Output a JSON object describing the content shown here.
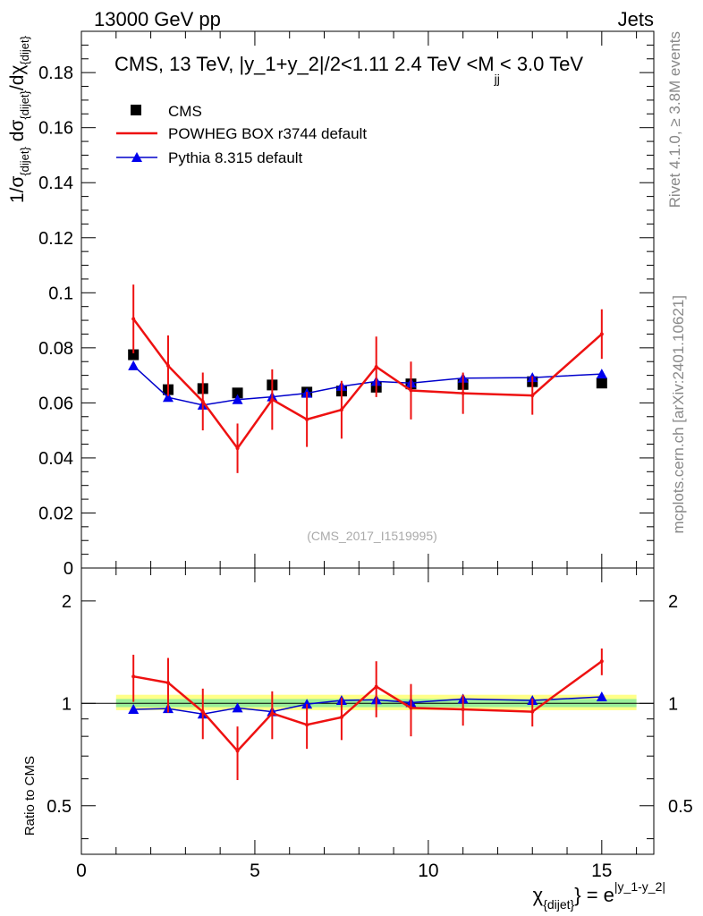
{
  "header": {
    "left": "13000 GeV pp",
    "right": "Jets"
  },
  "plot_title_parts": {
    "main": "CMS, 13 TeV, |y_1+y_2|/2<1.11 2.4 TeV <M",
    "sub": "jj",
    "tail": "< 3.0 TeV"
  },
  "side_labels": {
    "rivet": "Rivet 4.1.0, ≥ 3.8M events",
    "mcplots": "mcplots.cern.ch [arXiv:2401.10621]"
  },
  "watermark": "(CMS_2017_I1519995)",
  "ylabel_top_parts": {
    "a": "1/σ",
    "a_sub": "{dijet}",
    "b": " dσ",
    "b_sub": "{dijet}",
    "c": "/dχ",
    "c_sub": "{dijet}"
  },
  "ylabel_bottom": "Ratio to CMS",
  "xlabel_parts": {
    "chi": "χ",
    "chi_sub": "{dijet}",
    "eq": "} = e",
    "exp": "|y_1-y_2|"
  },
  "legend": [
    {
      "name": "CMS",
      "color": "#000000",
      "marker": "square"
    },
    {
      "name": "POWHEG BOX r3744 default",
      "color": "#ee1111",
      "marker": "line"
    },
    {
      "name": "Pythia 8.315 default",
      "color": "#0000cc",
      "marker": "triangle"
    }
  ],
  "chart_data": [
    {
      "type": "line",
      "panel": "main",
      "xlim": [
        0,
        16.5
      ],
      "ylim": [
        0,
        0.195
      ],
      "xticks": [
        "0",
        "5",
        "10",
        "15"
      ],
      "yticks": [
        "0",
        "0.02",
        "0.04",
        "0.06",
        "0.08",
        "0.1",
        "0.12",
        "0.14",
        "0.16",
        "0.18"
      ],
      "bins": [
        [
          1,
          2
        ],
        [
          2,
          3
        ],
        [
          3,
          4
        ],
        [
          4,
          5
        ],
        [
          5,
          6
        ],
        [
          6,
          7
        ],
        [
          7,
          8
        ],
        [
          8,
          9
        ],
        [
          9,
          10
        ],
        [
          10,
          12
        ],
        [
          12,
          14
        ],
        [
          14,
          16
        ]
      ],
      "series": [
        {
          "name": "CMS",
          "x": [
            1.5,
            2.5,
            3.5,
            4.5,
            5.5,
            6.5,
            7.5,
            8.5,
            9.5,
            11,
            13,
            15
          ],
          "values": [
            0.0775,
            0.0648,
            0.0652,
            0.0636,
            0.0665,
            0.0639,
            0.0643,
            0.0657,
            0.0669,
            0.0667,
            0.0677,
            0.0672
          ]
        },
        {
          "name": "POWHEG BOX r3744 default",
          "x": [
            1.5,
            2.5,
            3.5,
            4.5,
            5.5,
            6.5,
            7.5,
            8.5,
            9.5,
            11,
            13,
            15
          ],
          "values": [
            0.0905,
            0.0735,
            0.0605,
            0.0435,
            0.0612,
            0.054,
            0.0575,
            0.0731,
            0.0645,
            0.0635,
            0.0627,
            0.085
          ],
          "err": [
            0.0125,
            0.011,
            0.0105,
            0.009,
            0.011,
            0.01,
            0.0105,
            0.011,
            0.0105,
            0.0075,
            0.007,
            0.009
          ]
        },
        {
          "name": "Pythia 8.315 default",
          "x": [
            1.5,
            2.5,
            3.5,
            4.5,
            5.5,
            6.5,
            7.5,
            8.5,
            9.5,
            11,
            13,
            15
          ],
          "values": [
            0.0735,
            0.062,
            0.0592,
            0.0612,
            0.0622,
            0.0635,
            0.066,
            0.0678,
            0.0672,
            0.069,
            0.0692,
            0.0705
          ],
          "err": [
            0.0006,
            0.0005,
            0.0005,
            0.0005,
            0.0005,
            0.0005,
            0.0005,
            0.0005,
            0.0005,
            0.0005,
            0.0005,
            0.0005
          ]
        }
      ]
    },
    {
      "type": "line",
      "panel": "ratio",
      "xlim": [
        0,
        16.5
      ],
      "ylim": [
        0.36,
        2.5
      ],
      "yscale": "log",
      "yticks": [
        "0.5",
        "1",
        "2"
      ],
      "xticks": [
        "0",
        "5",
        "10",
        "15"
      ],
      "band": {
        "inner": [
          0.975,
          1.03
        ],
        "outer": [
          0.955,
          1.06
        ],
        "x": [
          1,
          16
        ]
      },
      "series": [
        {
          "name": "POWHEG BOX r3744 default",
          "x": [
            1.5,
            2.5,
            3.5,
            4.5,
            5.5,
            6.5,
            7.5,
            8.5,
            9.5,
            11,
            13,
            15
          ],
          "values": [
            1.2,
            1.15,
            0.945,
            0.725,
            0.935,
            0.865,
            0.91,
            1.12,
            0.97,
            0.96,
            0.945,
            1.33
          ],
          "err": [
            0.19,
            0.21,
            0.16,
            0.13,
            0.15,
            0.13,
            0.13,
            0.21,
            0.17,
            0.1,
            0.09,
            0.12
          ]
        },
        {
          "name": "Pythia 8.315 default",
          "x": [
            1.5,
            2.5,
            3.5,
            4.5,
            5.5,
            6.5,
            7.5,
            8.5,
            9.5,
            11,
            13,
            15
          ],
          "values": [
            0.96,
            0.965,
            0.93,
            0.97,
            0.945,
            0.995,
            1.02,
            1.025,
            1.005,
            1.03,
            1.02,
            1.045
          ],
          "err": [
            0.01,
            0.01,
            0.01,
            0.01,
            0.01,
            0.01,
            0.01,
            0.01,
            0.01,
            0.01,
            0.01,
            0.01
          ]
        }
      ]
    }
  ]
}
